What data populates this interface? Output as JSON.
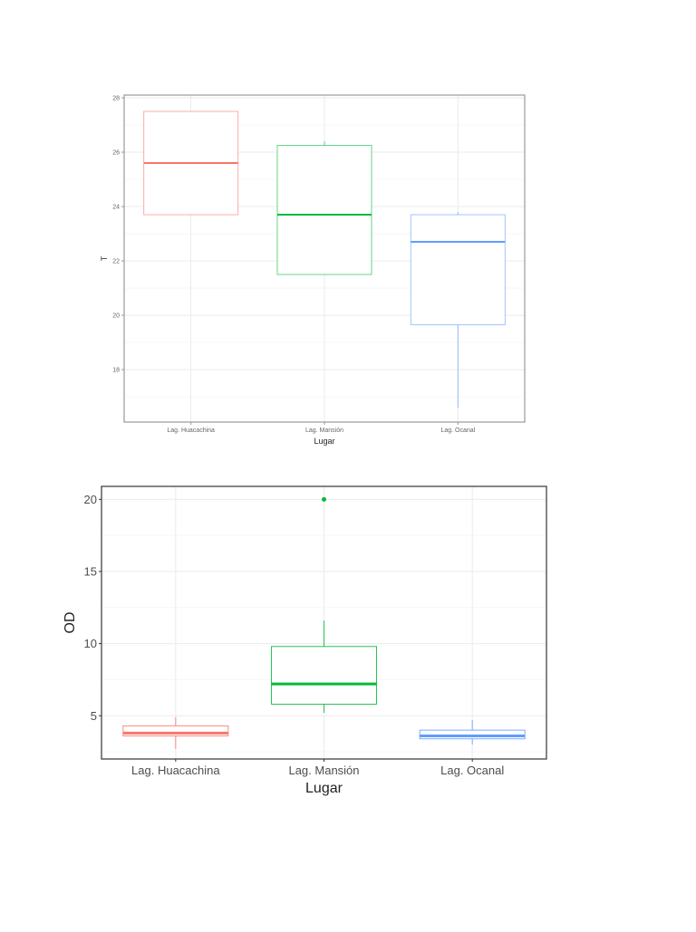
{
  "chart_data": [
    {
      "type": "box",
      "title": "",
      "xlabel": "Lugar",
      "ylabel": "T",
      "categories": [
        "Lag. Huacachina",
        "Lag. Mansión",
        "Lag. Ocanal"
      ],
      "colors": [
        "#F8766D",
        "#00BA38",
        "#619CFF"
      ],
      "ylim": [
        16.07,
        28.1
      ],
      "yticks": [
        18,
        20,
        22,
        24,
        26,
        28
      ],
      "ytick_labels": [
        "18",
        "20",
        "22",
        "24",
        "26",
        "28"
      ],
      "grid": true,
      "series": [
        {
          "name": "Lag. Huacachina",
          "min": 23.7,
          "q1": 23.7,
          "median": 25.6,
          "q3": 27.5,
          "max": 27.5,
          "outliers": []
        },
        {
          "name": "Lag. Mansión",
          "min": 21.5,
          "q1": 21.5,
          "median": 23.7,
          "q3": 26.25,
          "max": 26.4,
          "outliers": []
        },
        {
          "name": "Lag. Ocanal",
          "min": 16.6,
          "q1": 19.65,
          "median": 22.7,
          "q3": 23.7,
          "max": 23.8,
          "outliers": []
        }
      ]
    },
    {
      "type": "box",
      "title": "",
      "xlabel": "Lugar",
      "ylabel": "OD",
      "categories": [
        "Lag. Huacachina",
        "Lag. Mansión",
        "Lag. Ocanal"
      ],
      "colors": [
        "#F8766D",
        "#00BA38",
        "#619CFF"
      ],
      "ylim": [
        2.0,
        20.9
      ],
      "yticks": [
        5,
        10,
        15,
        20
      ],
      "ytick_labels": [
        "5",
        "10",
        "15",
        "20"
      ],
      "grid": true,
      "series": [
        {
          "name": "Lag. Huacachina",
          "min": 2.7,
          "q1": 3.6,
          "median": 3.8,
          "q3": 4.3,
          "max": 4.9,
          "outliers": []
        },
        {
          "name": "Lag. Mansión",
          "min": 5.2,
          "q1": 5.8,
          "median": 7.2,
          "q3": 9.8,
          "max": 11.6,
          "outliers": [
            20
          ]
        },
        {
          "name": "Lag. Ocanal",
          "min": 3.0,
          "q1": 3.4,
          "median": 3.6,
          "q3": 4.0,
          "max": 4.7,
          "outliers": []
        }
      ]
    }
  ]
}
